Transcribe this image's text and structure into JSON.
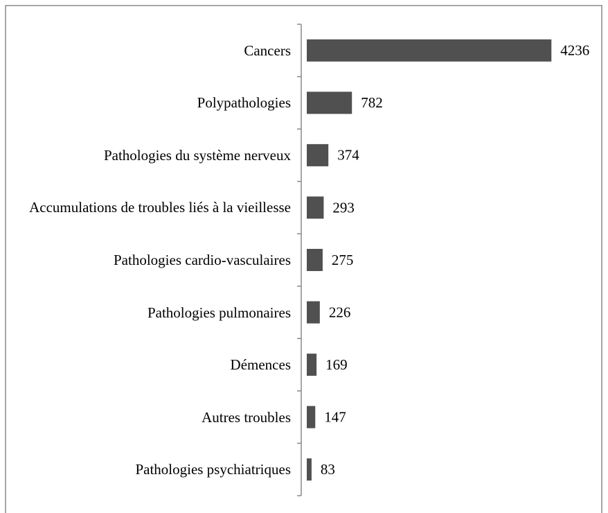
{
  "chart_data": {
    "type": "barh",
    "categories": [
      "Cancers",
      "Polypathologies",
      "Pathologies du système nerveux",
      "Accumulations de troubles liés à la vieillesse",
      "Pathologies cardio-vasculaires",
      "Pathologies pulmonaires",
      "Démences",
      "Autres troubles",
      "Pathologies psychiatriques"
    ],
    "values": [
      4236,
      782,
      374,
      293,
      275,
      226,
      169,
      147,
      83
    ],
    "color": "#505050",
    "xlim": [
      0,
      5000
    ]
  }
}
